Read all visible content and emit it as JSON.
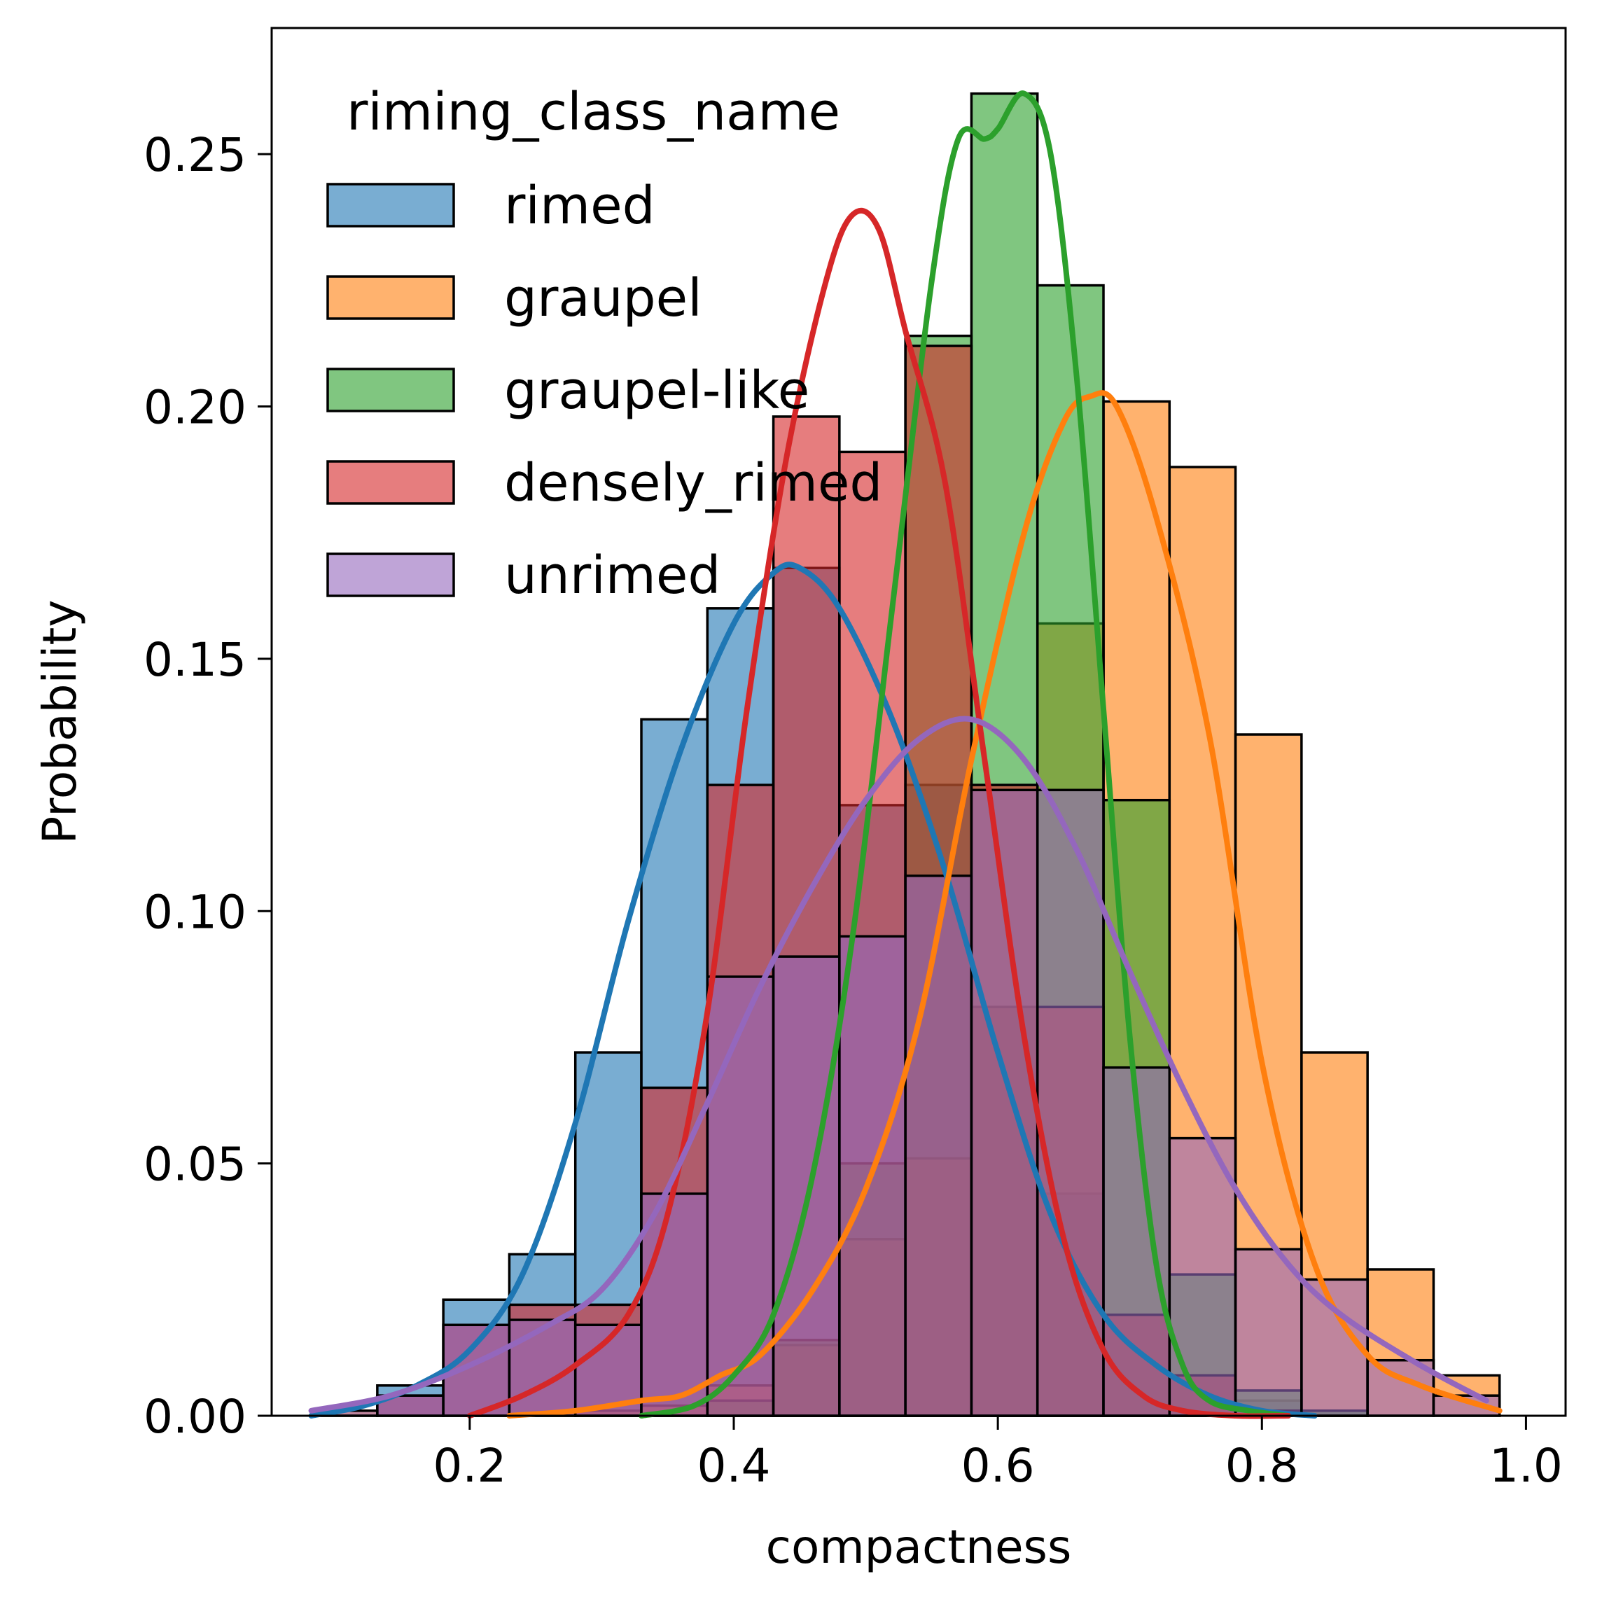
{
  "chart_data": {
    "type": "bar",
    "subtype": "histogram-with-kde",
    "xlabel": "compactness",
    "ylabel": "Probability",
    "xlim": [
      0.05,
      1.03
    ],
    "ylim": [
      0,
      0.275
    ],
    "x_ticks": [
      "0.2",
      "0.4",
      "0.6",
      "0.8",
      "1.0"
    ],
    "x_tick_values": [
      0.2,
      0.4,
      0.6,
      0.8,
      1.0
    ],
    "y_ticks": [
      "0.00",
      "0.05",
      "0.10",
      "0.15",
      "0.20",
      "0.25"
    ],
    "y_tick_values": [
      0,
      0.05,
      0.1,
      0.15,
      0.2,
      0.25
    ],
    "grid": false,
    "legend": {
      "title": "riming_class_name",
      "placement": "upper-left"
    },
    "bin_edges": [
      0.08,
      0.13,
      0.18,
      0.23,
      0.28,
      0.33,
      0.38,
      0.43,
      0.48,
      0.53,
      0.58,
      0.63,
      0.68,
      0.73,
      0.78,
      0.83,
      0.88,
      0.93,
      0.98
    ],
    "series": [
      {
        "name": "rimed",
        "color": "#1f77b4",
        "values": [
          0.0,
          0.006,
          0.023,
          0.032,
          0.072,
          0.138,
          0.16,
          0.168,
          0.121,
          0.125,
          0.081,
          0.044,
          0.02,
          0.008,
          0.003,
          0.001,
          0.0,
          0.0
        ],
        "kde_x": [
          0.08,
          0.12,
          0.16,
          0.2,
          0.24,
          0.28,
          0.32,
          0.36,
          0.4,
          0.43,
          0.45,
          0.48,
          0.52,
          0.56,
          0.6,
          0.64,
          0.68,
          0.72,
          0.76,
          0.8,
          0.84
        ],
        "kde_y": [
          0.0,
          0.002,
          0.006,
          0.013,
          0.028,
          0.058,
          0.098,
          0.132,
          0.157,
          0.167,
          0.168,
          0.16,
          0.138,
          0.108,
          0.072,
          0.04,
          0.02,
          0.01,
          0.004,
          0.001,
          0.0
        ]
      },
      {
        "name": "graupel",
        "color": "#ff7f0e",
        "values": [
          0.001,
          0.0,
          0.0,
          0.0,
          0.001,
          0.002,
          0.006,
          0.014,
          0.035,
          0.051,
          0.081,
          0.157,
          0.201,
          0.188,
          0.135,
          0.072,
          0.029,
          0.008
        ],
        "kde_x": [
          0.23,
          0.28,
          0.33,
          0.36,
          0.39,
          0.42,
          0.46,
          0.5,
          0.54,
          0.58,
          0.62,
          0.65,
          0.67,
          0.69,
          0.72,
          0.76,
          0.8,
          0.84,
          0.88,
          0.92,
          0.98
        ],
        "kde_y": [
          0.0,
          0.001,
          0.003,
          0.004,
          0.008,
          0.012,
          0.025,
          0.045,
          0.078,
          0.13,
          0.175,
          0.197,
          0.202,
          0.2,
          0.178,
          0.135,
          0.07,
          0.03,
          0.012,
          0.006,
          0.001
        ]
      },
      {
        "name": "graupel-like",
        "color": "#2ca02c",
        "values": [
          0.0,
          0.0,
          0.0,
          0.0,
          0.0,
          0.0,
          0.003,
          0.015,
          0.05,
          0.214,
          0.262,
          0.224,
          0.122,
          0.028,
          0.005,
          0.001,
          0.0,
          0.0
        ],
        "kde_x": [
          0.33,
          0.37,
          0.4,
          0.43,
          0.46,
          0.49,
          0.52,
          0.55,
          0.57,
          0.59,
          0.6,
          0.62,
          0.64,
          0.66,
          0.68,
          0.7,
          0.72,
          0.74,
          0.76,
          0.79,
          0.82
        ],
        "kde_y": [
          0.0,
          0.002,
          0.008,
          0.02,
          0.048,
          0.095,
          0.16,
          0.225,
          0.253,
          0.253,
          0.255,
          0.262,
          0.25,
          0.205,
          0.14,
          0.075,
          0.03,
          0.01,
          0.003,
          0.001,
          0.0
        ]
      },
      {
        "name": "densely_rimed",
        "color": "#d62728",
        "values": [
          0.0,
          0.004,
          0.018,
          0.022,
          0.022,
          0.065,
          0.125,
          0.198,
          0.191,
          0.212,
          0.125,
          0.081,
          0.02,
          0.008,
          0.001,
          0.0,
          0.0,
          0.0
        ],
        "kde_x": [
          0.2,
          0.24,
          0.28,
          0.32,
          0.35,
          0.38,
          0.41,
          0.44,
          0.47,
          0.49,
          0.51,
          0.53,
          0.56,
          0.59,
          0.62,
          0.65,
          0.68,
          0.71,
          0.74,
          0.78,
          0.82
        ],
        "kde_y": [
          0.0,
          0.004,
          0.01,
          0.02,
          0.04,
          0.08,
          0.14,
          0.19,
          0.225,
          0.238,
          0.235,
          0.215,
          0.185,
          0.13,
          0.075,
          0.035,
          0.013,
          0.004,
          0.001,
          0.0,
          0.0
        ]
      },
      {
        "name": "unrimed",
        "color": "#9467bd",
        "values": [
          0.001,
          0.004,
          0.018,
          0.019,
          0.018,
          0.044,
          0.087,
          0.091,
          0.095,
          0.107,
          0.124,
          0.124,
          0.069,
          0.055,
          0.033,
          0.027,
          0.011,
          0.004
        ],
        "kde_x": [
          0.08,
          0.14,
          0.2,
          0.26,
          0.3,
          0.34,
          0.38,
          0.42,
          0.46,
          0.5,
          0.54,
          0.58,
          0.62,
          0.66,
          0.7,
          0.74,
          0.78,
          0.82,
          0.86,
          0.92,
          0.97
        ],
        "kde_y": [
          0.001,
          0.004,
          0.01,
          0.018,
          0.025,
          0.04,
          0.062,
          0.085,
          0.105,
          0.122,
          0.134,
          0.138,
          0.13,
          0.112,
          0.088,
          0.065,
          0.045,
          0.03,
          0.02,
          0.01,
          0.003
        ]
      }
    ]
  }
}
